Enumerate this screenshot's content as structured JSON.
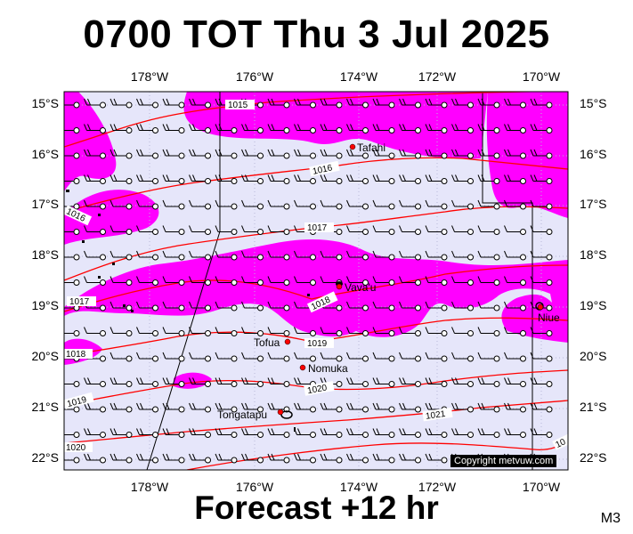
{
  "header": {
    "title": "0700 TOT Thu 3 Jul 2025"
  },
  "footer": {
    "forecast_label": "Forecast +12 hr",
    "model_code": "M3"
  },
  "copyright": "Copyright metvuw.com",
  "colors": {
    "background": "#e6e6fa",
    "rain": "#ff00ff",
    "isobar": "#ff0000",
    "barb": "#000000"
  },
  "axes": {
    "longitude_ticks": [
      "178°W",
      "176°W",
      "174°W",
      "172°W",
      "170°W"
    ],
    "latitude_ticks": [
      "15°S",
      "16°S",
      "17°S",
      "18°S",
      "19°S",
      "20°S",
      "21°S",
      "22°S"
    ]
  },
  "isobars": [
    "1015",
    "1016",
    "1016",
    "1017",
    "1017",
    "1018",
    "1018",
    "1019",
    "1019",
    "1020",
    "1020",
    "1021",
    "10"
  ],
  "places": [
    {
      "name": "Tafahi"
    },
    {
      "name": "Vava'u"
    },
    {
      "name": "Niue"
    },
    {
      "name": "Tofua"
    },
    {
      "name": "Nomuka"
    },
    {
      "name": "Tongatapu"
    }
  ]
}
